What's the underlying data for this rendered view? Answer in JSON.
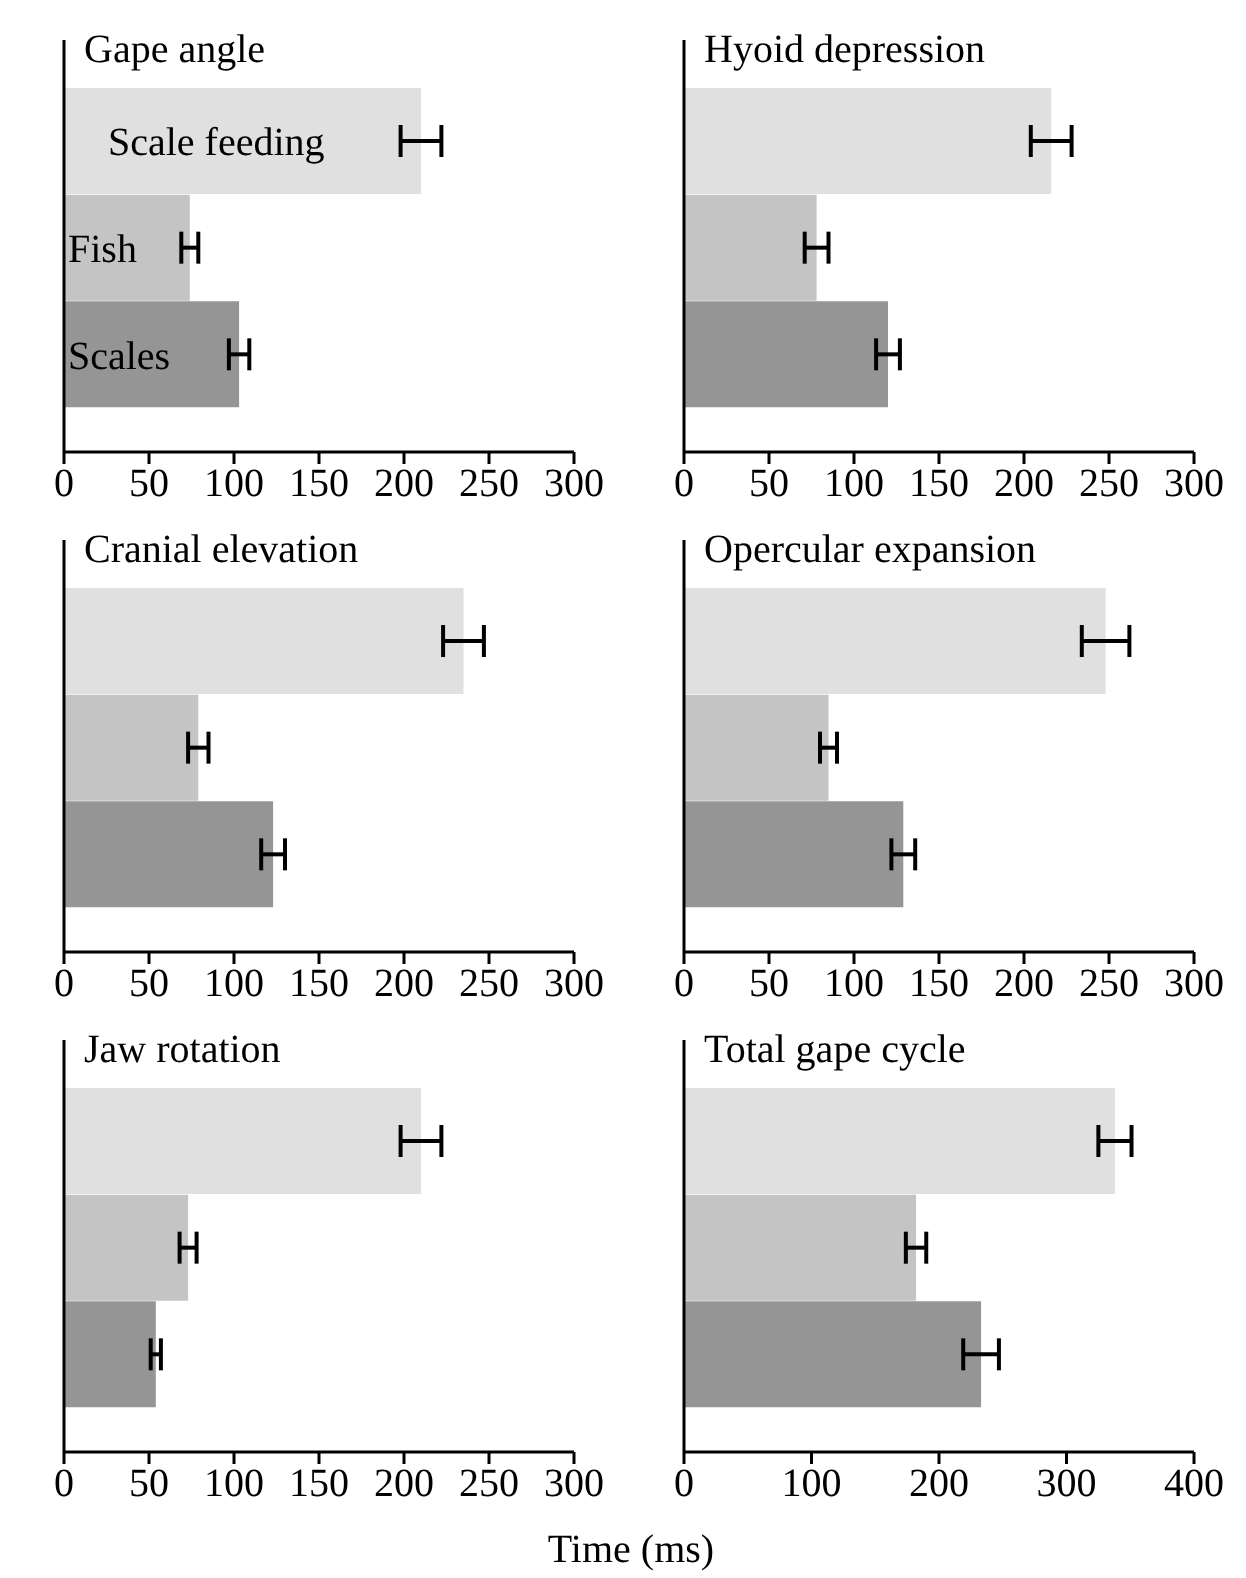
{
  "chart_data": [
    {
      "type": "bar",
      "orientation": "horizontal",
      "title": "Gape angle",
      "categories": [
        "Scale feeding",
        "Fish",
        "Scales"
      ],
      "values": [
        210,
        74,
        103
      ],
      "errors": [
        12,
        5,
        6
      ],
      "colors": [
        "#e0e0e0",
        "#c4c4c4",
        "#959595"
      ],
      "xlim": [
        0,
        300
      ],
      "xticks": [
        0,
        50,
        100,
        150,
        200,
        250,
        300
      ],
      "grid": false,
      "legend": false
    },
    {
      "type": "bar",
      "orientation": "horizontal",
      "title": "Hyoid depression",
      "categories": [
        null,
        null,
        null
      ],
      "values": [
        216,
        78,
        120
      ],
      "errors": [
        12,
        7,
        7
      ],
      "colors": [
        "#e0e0e0",
        "#c4c4c4",
        "#959595"
      ],
      "xlim": [
        0,
        300
      ],
      "xticks": [
        0,
        50,
        100,
        150,
        200,
        250,
        300
      ],
      "grid": false,
      "legend": false
    },
    {
      "type": "bar",
      "orientation": "horizontal",
      "title": "Cranial elevation",
      "categories": [
        null,
        null,
        null
      ],
      "values": [
        235,
        79,
        123
      ],
      "errors": [
        12,
        6,
        7
      ],
      "colors": [
        "#e0e0e0",
        "#c4c4c4",
        "#959595"
      ],
      "xlim": [
        0,
        300
      ],
      "xticks": [
        0,
        50,
        100,
        150,
        200,
        250,
        300
      ],
      "grid": false,
      "legend": false
    },
    {
      "type": "bar",
      "orientation": "horizontal",
      "title": "Opercular expansion",
      "categories": [
        null,
        null,
        null
      ],
      "values": [
        248,
        85,
        129
      ],
      "errors": [
        14,
        5,
        7
      ],
      "colors": [
        "#e0e0e0",
        "#c4c4c4",
        "#959595"
      ],
      "xlim": [
        0,
        300
      ],
      "xticks": [
        0,
        50,
        100,
        150,
        200,
        250,
        300
      ],
      "grid": false,
      "legend": false
    },
    {
      "type": "bar",
      "orientation": "horizontal",
      "title": "Jaw rotation",
      "categories": [
        null,
        null,
        null
      ],
      "values": [
        210,
        73,
        54
      ],
      "errors": [
        12,
        5,
        3
      ],
      "colors": [
        "#e0e0e0",
        "#c4c4c4",
        "#959595"
      ],
      "xlim": [
        0,
        300
      ],
      "xticks": [
        0,
        50,
        100,
        150,
        200,
        250,
        300
      ],
      "grid": false,
      "legend": false,
      "xlabel": "Time (ms)"
    },
    {
      "type": "bar",
      "orientation": "horizontal",
      "title": "Total gape cycle",
      "categories": [
        null,
        null,
        null
      ],
      "values": [
        338,
        182,
        233
      ],
      "errors": [
        13,
        8,
        14
      ],
      "colors": [
        "#e0e0e0",
        "#c4c4c4",
        "#959595"
      ],
      "xlim": [
        0,
        400
      ],
      "xticks": [
        0,
        100,
        200,
        300,
        400
      ],
      "grid": false,
      "legend": false
    }
  ]
}
